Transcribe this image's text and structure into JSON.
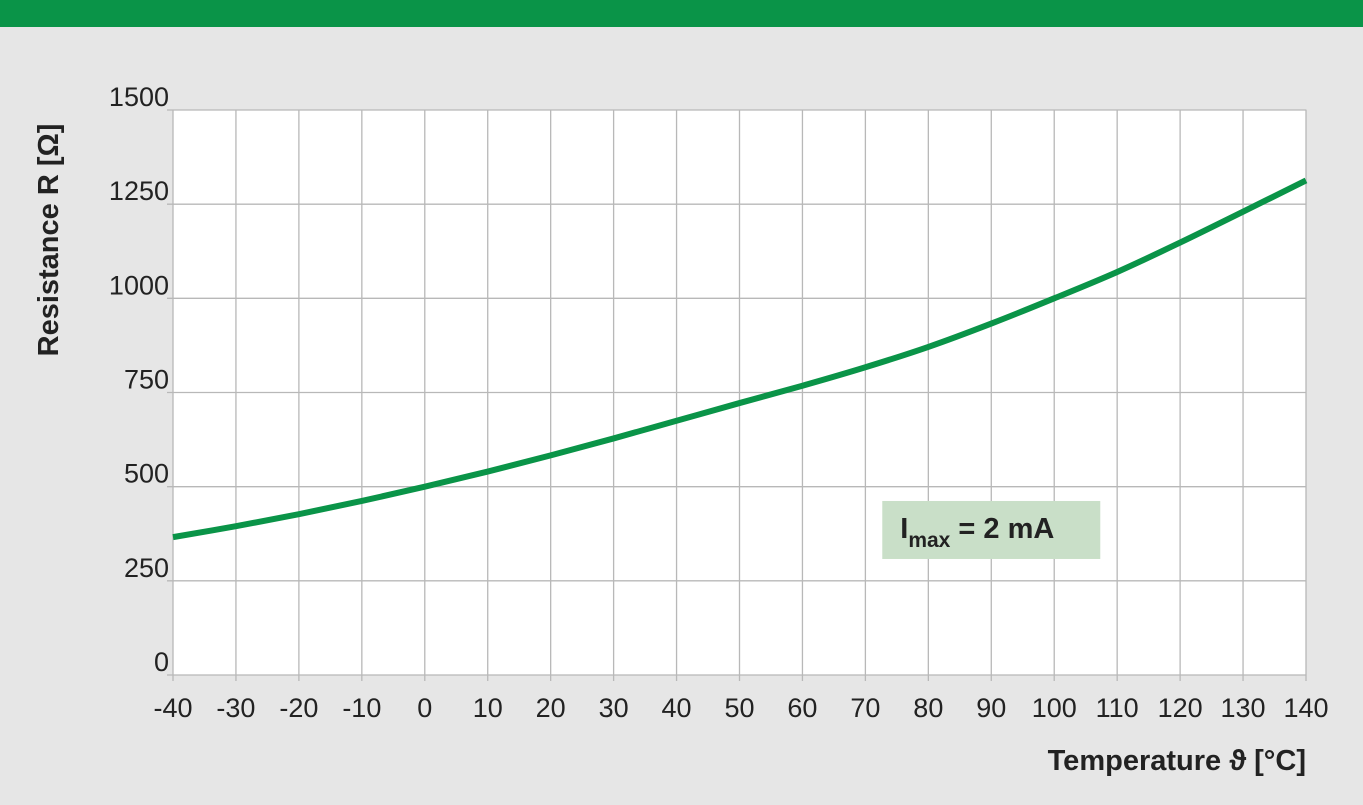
{
  "theme": {
    "accent": "#0a9448",
    "background": "#e6e6e6",
    "plot_bg": "#ffffff",
    "grid": "#b8b8b8",
    "annotation_bg": "#c9dfc8"
  },
  "chart_data": {
    "type": "line",
    "title": "",
    "xlabel": "Temperature ϑ [°C]",
    "ylabel": "Resistance R [Ω]",
    "xlim": [
      -40,
      140
    ],
    "ylim": [
      0,
      1500
    ],
    "x_ticks": [
      "-40",
      "-30",
      "-20",
      "-10",
      "0",
      "10",
      "20",
      "30",
      "40",
      "50",
      "60",
      "70",
      "80",
      "90",
      "100",
      "110",
      "120",
      "130",
      "140"
    ],
    "y_ticks": [
      "0",
      "250",
      "500",
      "750",
      "1000",
      "1250",
      "1500"
    ],
    "grid": true,
    "series": [
      {
        "color": "#0a9448",
        "x": [
          -40,
          -30,
          -20,
          -10,
          0,
          10,
          20,
          30,
          40,
          50,
          60,
          70,
          80,
          90,
          100,
          110,
          120,
          130,
          140
        ],
        "y": [
          366,
          395,
          427,
          462,
          500,
          540,
          583,
          628,
          675,
          722,
          768,
          817,
          871,
          933,
          1000,
          1070,
          1148,
          1230,
          1313
        ]
      }
    ],
    "annotation": {
      "main": "I",
      "sub": "max",
      "rest": " = 2 mA",
      "x": 90,
      "y": 385
    }
  }
}
